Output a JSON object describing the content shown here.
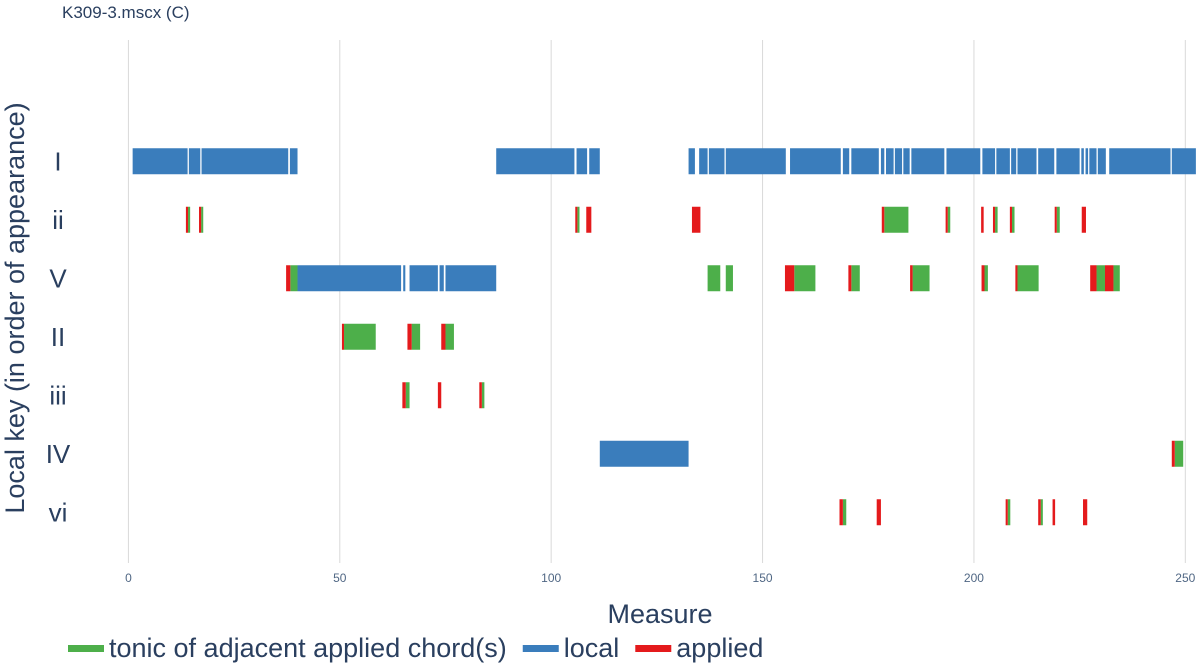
{
  "chart_data": {
    "type": "gantt",
    "title": "K309-3.mscx (C)",
    "xlabel": "Measure",
    "ylabel": "Local key (in order of appearance)",
    "xlim": [
      -15,
      253
    ],
    "xticks": [
      0,
      50,
      100,
      150,
      200,
      250
    ],
    "grid": true,
    "categories": [
      "I",
      "ii",
      "V",
      "II",
      "iii",
      "IV",
      "vi"
    ],
    "series": [
      {
        "name": "local",
        "color": "#3a7dbc",
        "segments": [
          {
            "key": "I",
            "start": 1,
            "end": 14
          },
          {
            "key": "I",
            "start": 14.3,
            "end": 17
          },
          {
            "key": "I",
            "start": 17.3,
            "end": 37.8
          },
          {
            "key": "I",
            "start": 38.2,
            "end": 40
          },
          {
            "key": "I",
            "start": 87,
            "end": 105.5
          },
          {
            "key": "I",
            "start": 106,
            "end": 108.5
          },
          {
            "key": "I",
            "start": 109,
            "end": 111.5
          },
          {
            "key": "I",
            "start": 132.5,
            "end": 134
          },
          {
            "key": "I",
            "start": 135,
            "end": 137
          },
          {
            "key": "I",
            "start": 137.3,
            "end": 141
          },
          {
            "key": "I",
            "start": 141.3,
            "end": 155.5
          },
          {
            "key": "I",
            "start": 156.5,
            "end": 168.5
          },
          {
            "key": "I",
            "start": 169,
            "end": 170.5
          },
          {
            "key": "I",
            "start": 171,
            "end": 177.5
          },
          {
            "key": "I",
            "start": 178,
            "end": 178.8
          },
          {
            "key": "I",
            "start": 179.2,
            "end": 181
          },
          {
            "key": "I",
            "start": 181.3,
            "end": 183
          },
          {
            "key": "I",
            "start": 183.3,
            "end": 184.8
          },
          {
            "key": "I",
            "start": 185.2,
            "end": 193
          },
          {
            "key": "I",
            "start": 193.5,
            "end": 201.5
          },
          {
            "key": "I",
            "start": 202,
            "end": 205
          },
          {
            "key": "I",
            "start": 205.3,
            "end": 208.5
          },
          {
            "key": "I",
            "start": 208.8,
            "end": 210
          },
          {
            "key": "I",
            "start": 210.3,
            "end": 214.8
          },
          {
            "key": "I",
            "start": 215.2,
            "end": 219
          },
          {
            "key": "I",
            "start": 219.5,
            "end": 225
          },
          {
            "key": "I",
            "start": 225.4,
            "end": 226
          },
          {
            "key": "I",
            "start": 226.4,
            "end": 227
          },
          {
            "key": "I",
            "start": 227.3,
            "end": 229
          },
          {
            "key": "I",
            "start": 229.3,
            "end": 231.2
          },
          {
            "key": "I",
            "start": 232,
            "end": 246.5
          },
          {
            "key": "I",
            "start": 246.8,
            "end": 252.5
          },
          {
            "key": "V",
            "start": 40,
            "end": 64.5
          },
          {
            "key": "V",
            "start": 65,
            "end": 65.5
          },
          {
            "key": "V",
            "start": 66.5,
            "end": 73.2
          },
          {
            "key": "V",
            "start": 73.6,
            "end": 74.6
          },
          {
            "key": "V",
            "start": 75,
            "end": 87
          },
          {
            "key": "IV",
            "start": 111.5,
            "end": 132.5
          }
        ]
      },
      {
        "name": "tonic of adjacent applied chord(s)",
        "color": "#4daf4a",
        "segments": [
          {
            "key": "ii",
            "start": 14.1,
            "end": 14.6
          },
          {
            "key": "ii",
            "start": 17.2,
            "end": 17.7
          },
          {
            "key": "ii",
            "start": 106.2,
            "end": 106.7
          },
          {
            "key": "ii",
            "start": 178.8,
            "end": 184.5
          },
          {
            "key": "ii",
            "start": 193.8,
            "end": 194.4
          },
          {
            "key": "ii",
            "start": 205,
            "end": 205.6
          },
          {
            "key": "ii",
            "start": 209,
            "end": 209.6
          },
          {
            "key": "ii",
            "start": 219.6,
            "end": 220.3
          },
          {
            "key": "V",
            "start": 38.3,
            "end": 40
          },
          {
            "key": "V",
            "start": 137,
            "end": 140
          },
          {
            "key": "V",
            "start": 141.3,
            "end": 143
          },
          {
            "key": "V",
            "start": 157.5,
            "end": 162.5
          },
          {
            "key": "V",
            "start": 171,
            "end": 173
          },
          {
            "key": "V",
            "start": 185.5,
            "end": 189.5
          },
          {
            "key": "V",
            "start": 202.5,
            "end": 203.3
          },
          {
            "key": "V",
            "start": 210.3,
            "end": 215.3
          },
          {
            "key": "V",
            "start": 229,
            "end": 231
          },
          {
            "key": "V",
            "start": 233,
            "end": 234.5
          },
          {
            "key": "II",
            "start": 51,
            "end": 58.5
          },
          {
            "key": "II",
            "start": 67,
            "end": 69
          },
          {
            "key": "II",
            "start": 75,
            "end": 77
          },
          {
            "key": "iii",
            "start": 65.6,
            "end": 66.5
          },
          {
            "key": "iii",
            "start": 83.6,
            "end": 84.2
          },
          {
            "key": "IV",
            "start": 247.5,
            "end": 249.5
          },
          {
            "key": "vi",
            "start": 169,
            "end": 169.8
          },
          {
            "key": "vi",
            "start": 208,
            "end": 208.6
          },
          {
            "key": "vi",
            "start": 215.8,
            "end": 216.3
          }
        ]
      },
      {
        "name": "applied",
        "color": "#e41a1c",
        "segments": [
          {
            "key": "ii",
            "start": 13.6,
            "end": 14.1
          },
          {
            "key": "ii",
            "start": 16.7,
            "end": 17.2
          },
          {
            "key": "ii",
            "start": 105.7,
            "end": 106.2
          },
          {
            "key": "ii",
            "start": 108.3,
            "end": 109.5
          },
          {
            "key": "ii",
            "start": 133.3,
            "end": 135.3
          },
          {
            "key": "ii",
            "start": 178.2,
            "end": 178.8
          },
          {
            "key": "ii",
            "start": 193.3,
            "end": 193.8
          },
          {
            "key": "ii",
            "start": 201.7,
            "end": 202.3
          },
          {
            "key": "ii",
            "start": 204.5,
            "end": 205
          },
          {
            "key": "ii",
            "start": 208.5,
            "end": 209
          },
          {
            "key": "ii",
            "start": 219.1,
            "end": 219.6
          },
          {
            "key": "ii",
            "start": 225.5,
            "end": 226.5
          },
          {
            "key": "V",
            "start": 37.3,
            "end": 38.3
          },
          {
            "key": "V",
            "start": 155.3,
            "end": 157.5
          },
          {
            "key": "V",
            "start": 170.3,
            "end": 171
          },
          {
            "key": "V",
            "start": 184.9,
            "end": 185.5
          },
          {
            "key": "V",
            "start": 201.8,
            "end": 202.5
          },
          {
            "key": "V",
            "start": 209.8,
            "end": 210.3
          },
          {
            "key": "V",
            "start": 227.5,
            "end": 229
          },
          {
            "key": "V",
            "start": 231,
            "end": 233
          },
          {
            "key": "II",
            "start": 50.5,
            "end": 51
          },
          {
            "key": "II",
            "start": 66,
            "end": 67
          },
          {
            "key": "II",
            "start": 74,
            "end": 75
          },
          {
            "key": "iii",
            "start": 64.8,
            "end": 65.6
          },
          {
            "key": "iii",
            "start": 73.2,
            "end": 74
          },
          {
            "key": "iii",
            "start": 83,
            "end": 83.6
          },
          {
            "key": "IV",
            "start": 246.8,
            "end": 247.5
          },
          {
            "key": "vi",
            "start": 168.2,
            "end": 169
          },
          {
            "key": "vi",
            "start": 177,
            "end": 178
          },
          {
            "key": "vi",
            "start": 207.5,
            "end": 208
          },
          {
            "key": "vi",
            "start": 215.2,
            "end": 215.8
          },
          {
            "key": "vi",
            "start": 218.6,
            "end": 219.2
          },
          {
            "key": "vi",
            "start": 225.8,
            "end": 226.8
          }
        ]
      }
    ],
    "legend": {
      "placement": "bottom-left",
      "order": [
        "tonic of adjacent applied chord(s)",
        "local",
        "applied"
      ]
    }
  }
}
